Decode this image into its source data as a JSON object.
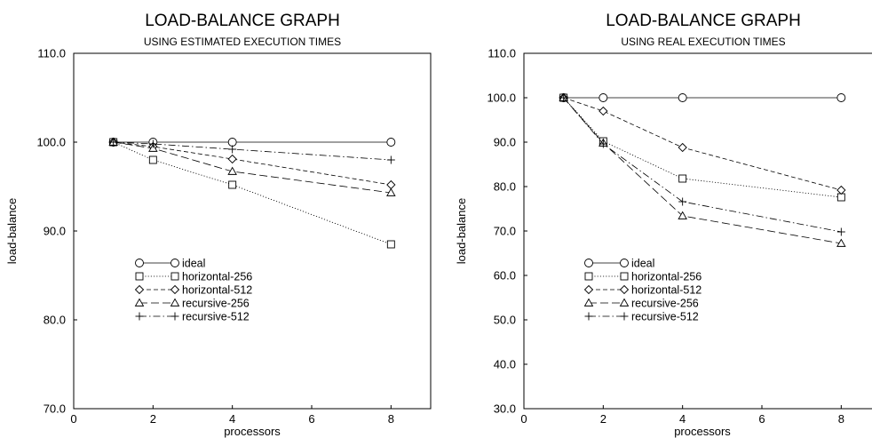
{
  "chart_data": [
    {
      "type": "line",
      "title": "LOAD-BALANCE GRAPH",
      "subtitle": "USING ESTIMATED EXECUTION TIMES",
      "xlabel": "processors",
      "ylabel": "load-balance",
      "xlim": [
        0,
        9
      ],
      "ylim": [
        70.0,
        110.0
      ],
      "xticks": [
        0,
        2,
        4,
        6,
        8
      ],
      "yticks": [
        70.0,
        80.0,
        90.0,
        100.0,
        110.0
      ],
      "x_tick_labels": [
        "0",
        "2",
        "4",
        "6",
        "8"
      ],
      "y_tick_labels": [
        "70.0",
        "80.0",
        "90.0",
        "100.0",
        "110.0"
      ],
      "grid": false,
      "legend_position": "lower-center",
      "x": [
        1,
        2,
        4,
        8
      ],
      "series": [
        {
          "name": "ideal",
          "values": [
            100.0,
            100.0,
            100.0,
            100.0
          ],
          "marker": "circle",
          "dash": "solid"
        },
        {
          "name": "horizontal-256",
          "values": [
            100.0,
            98.0,
            95.2,
            88.5
          ],
          "marker": "square",
          "dash": "dotted"
        },
        {
          "name": "horizontal-512",
          "values": [
            100.0,
            99.5,
            98.1,
            95.2
          ],
          "marker": "diamond",
          "dash": "dashed"
        },
        {
          "name": "recursive-256",
          "values": [
            100.0,
            99.3,
            96.7,
            94.3
          ],
          "marker": "triangle",
          "dash": "longdash"
        },
        {
          "name": "recursive-512",
          "values": [
            100.0,
            99.8,
            99.2,
            98.0
          ],
          "marker": "plus",
          "dash": "dashdot"
        }
      ]
    },
    {
      "type": "line",
      "title": "LOAD-BALANCE GRAPH",
      "subtitle": "USING REAL EXECUTION TIMES",
      "xlabel": "processors",
      "ylabel": "load-balance",
      "xlim": [
        0,
        9
      ],
      "ylim": [
        30.0,
        110.0
      ],
      "xticks": [
        0,
        2,
        4,
        6,
        8
      ],
      "yticks": [
        30.0,
        40.0,
        50.0,
        60.0,
        70.0,
        80.0,
        90.0,
        100.0,
        110.0
      ],
      "x_tick_labels": [
        "0",
        "2",
        "4",
        "6",
        "8"
      ],
      "y_tick_labels": [
        "30.0",
        "40.0",
        "50.0",
        "60.0",
        "70.0",
        "80.0",
        "90.0",
        "100.0",
        "110.0"
      ],
      "grid": false,
      "legend_position": "lower-left",
      "x": [
        1,
        2,
        4,
        8
      ],
      "series": [
        {
          "name": "ideal",
          "values": [
            100.0,
            100.0,
            100.0,
            100.0
          ],
          "marker": "circle",
          "dash": "solid"
        },
        {
          "name": "horizontal-256",
          "values": [
            100.0,
            90.2,
            81.8,
            77.6
          ],
          "marker": "square",
          "dash": "dotted"
        },
        {
          "name": "horizontal-512",
          "values": [
            100.0,
            97.0,
            88.8,
            79.2
          ],
          "marker": "diamond",
          "dash": "dashed"
        },
        {
          "name": "recursive-256",
          "values": [
            100.0,
            89.8,
            73.4,
            67.2
          ],
          "marker": "triangle",
          "dash": "longdash"
        },
        {
          "name": "recursive-512",
          "values": [
            100.0,
            89.6,
            76.6,
            69.8
          ],
          "marker": "plus",
          "dash": "dashdot"
        }
      ]
    }
  ],
  "colors": {
    "line": "#000000",
    "axis": "#000000",
    "background": "#ffffff"
  }
}
